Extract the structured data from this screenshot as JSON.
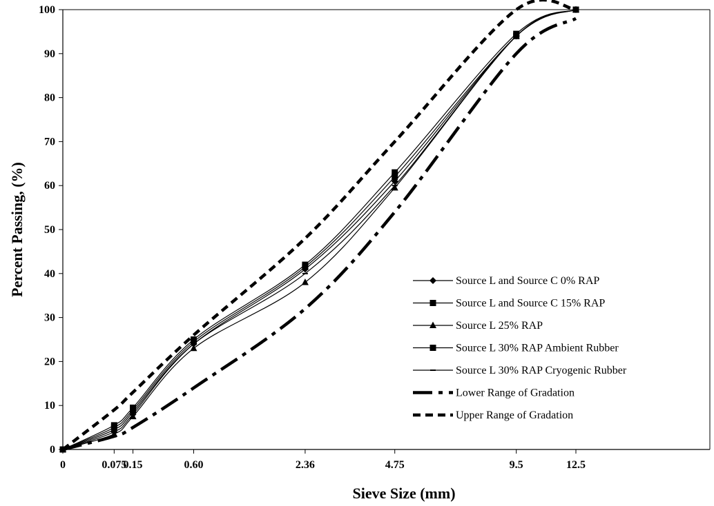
{
  "chart_data": {
    "type": "line",
    "xlabel": "Sieve Size  (mm)",
    "ylabel": "Percent Passing, (%)",
    "x_ticks": [
      "0",
      "0.075",
      "0.15",
      "0.60",
      "2.36",
      "4.75",
      "9.5",
      "12.5"
    ],
    "x_axis_scale": "power 0.45 (gradation chart)",
    "ylim": [
      0,
      100
    ],
    "y_ticks": [
      0,
      10,
      20,
      30,
      40,
      50,
      60,
      70,
      80,
      90,
      100
    ],
    "grid": false,
    "legend_position": "right",
    "series": [
      {
        "name": "Source L and Source C  0% RAP",
        "marker": "diamond",
        "style": "solid",
        "x": [
          0,
          0.075,
          0.15,
          0.6,
          2.36,
          4.75,
          9.5,
          12.5
        ],
        "y": [
          0,
          4,
          8,
          24,
          41,
          61,
          94,
          100
        ]
      },
      {
        "name": "Source L and Source C 15% RAP",
        "marker": "square",
        "style": "solid",
        "x": [
          0,
          0.075,
          0.15,
          0.6,
          2.36,
          4.75,
          9.5,
          12.5
        ],
        "y": [
          0,
          5,
          9,
          24.5,
          41.5,
          62,
          94,
          100
        ]
      },
      {
        "name": "Source L 25% RAP",
        "marker": "triangle",
        "style": "solid",
        "x": [
          0,
          0.075,
          0.15,
          0.6,
          2.36,
          4.75,
          9.5,
          12.5
        ],
        "y": [
          0,
          3.5,
          7.5,
          23,
          38,
          59.5,
          94,
          100
        ]
      },
      {
        "name": "Source L 30% RAP Ambient Rubber",
        "marker": "square",
        "style": "solid",
        "x": [
          0,
          0.075,
          0.15,
          0.6,
          2.36,
          4.75,
          9.5,
          12.5
        ],
        "y": [
          0,
          5.5,
          9.5,
          25,
          42,
          63,
          94.5,
          100
        ]
      },
      {
        "name": "Source L 30% RAP Cryogenic Rubber",
        "marker": "dash",
        "style": "solid",
        "x": [
          0,
          0.075,
          0.15,
          0.6,
          2.36,
          4.75,
          9.5,
          12.5
        ],
        "y": [
          0,
          4.5,
          8.5,
          24,
          40,
          60,
          94,
          100
        ]
      },
      {
        "name": "Lower Range of Gradation",
        "marker": "none",
        "style": "dashdot",
        "x": [
          0,
          0.075,
          0.15,
          0.6,
          2.36,
          4.75,
          9.5,
          12.5
        ],
        "y": [
          0,
          3,
          5,
          14,
          32,
          54,
          90,
          98
        ]
      },
      {
        "name": "Upper Range of Gradation",
        "marker": "none",
        "style": "dashed",
        "x": [
          0,
          0.075,
          0.15,
          0.6,
          2.36,
          4.75,
          9.5,
          12.5
        ],
        "y": [
          0,
          9,
          13,
          26,
          48,
          70,
          100,
          100
        ]
      }
    ]
  }
}
